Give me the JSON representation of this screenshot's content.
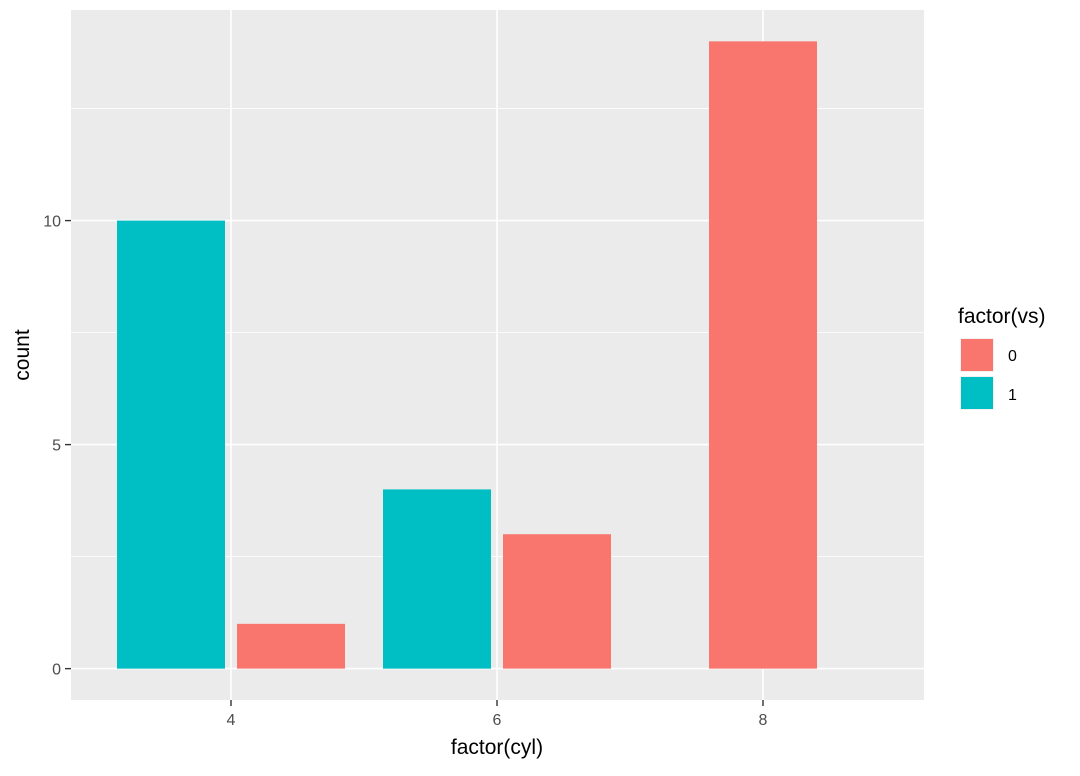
{
  "chart_data": {
    "type": "bar",
    "title": "",
    "xlabel": "factor(cyl)",
    "ylabel": "count",
    "categories": [
      "4",
      "6",
      "8"
    ],
    "series": [
      {
        "name": "0",
        "color": "#F8766D",
        "values": [
          1,
          3,
          14
        ]
      },
      {
        "name": "1",
        "color": "#00BFC4",
        "values": [
          10,
          4,
          0
        ]
      }
    ],
    "ylim": [
      -0.7,
      14.7
    ],
    "yticks": [
      0,
      5,
      10
    ],
    "ytick_labels": [
      "0",
      "5",
      "10"
    ],
    "grid": true,
    "legend": {
      "title": "factor(vs)",
      "position": "right",
      "entries": [
        {
          "label": "0",
          "color": "#F8766D"
        },
        {
          "label": "1",
          "color": "#00BFC4"
        }
      ]
    },
    "panel_background": "#EBEBEB",
    "grid_color": "#FFFFFF"
  }
}
